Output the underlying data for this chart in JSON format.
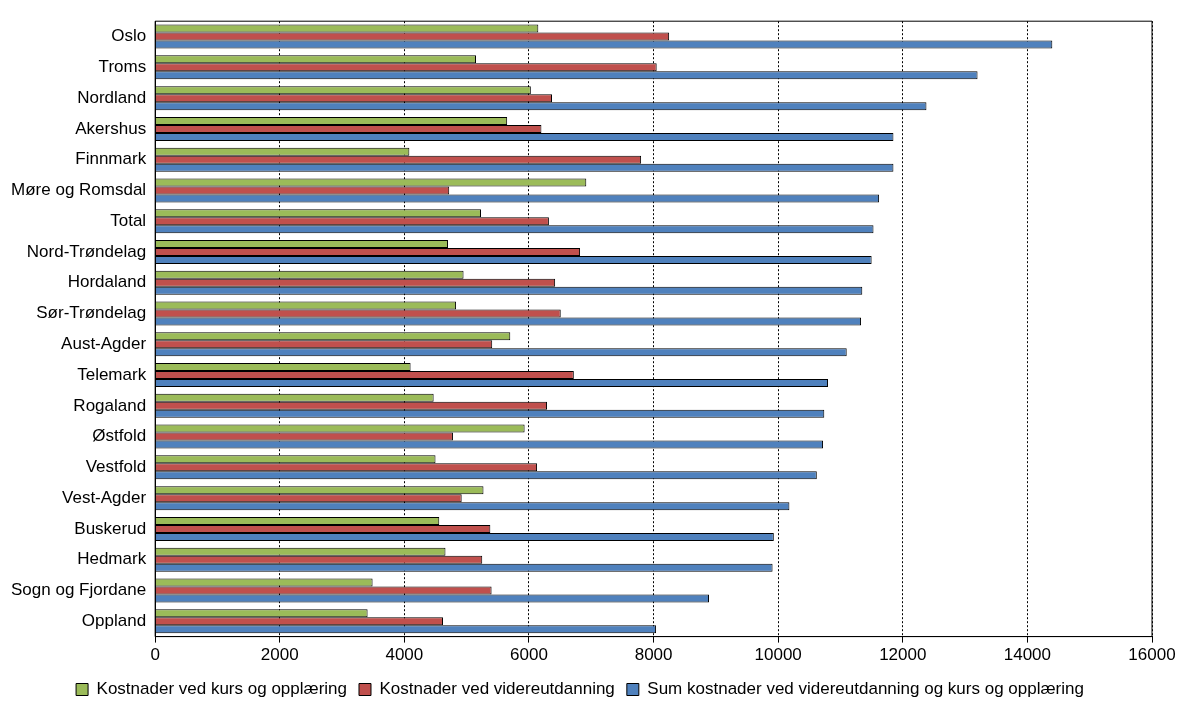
{
  "chart_data": {
    "type": "bar",
    "orientation": "horizontal",
    "categories": [
      "Oslo",
      "Troms",
      "Nordland",
      "Akershus",
      "Finnmark",
      "Møre og Romsdal",
      "Total",
      "Nord-Trøndelag",
      "Hordaland",
      "Sør-Trøndelag",
      "Aust-Agder",
      "Telemark",
      "Rogaland",
      "Østfold",
      "Vestfold",
      "Vest-Agder",
      "Buskerud",
      "Hedmark",
      "Sogn og Fjordane",
      "Oppland"
    ],
    "series": [
      {
        "name": "Kostnader ved kurs og opplæring",
        "color": "#9bbb59",
        "values": [
          6150,
          5150,
          6030,
          5650,
          4080,
          6920,
          5230,
          4700,
          4950,
          4830,
          5700,
          4100,
          4470,
          5930,
          4500,
          5270,
          4560,
          4660,
          3490,
          3410
        ]
      },
      {
        "name": "Kostnader ved videreutdanning",
        "color": "#c0504d",
        "values": [
          8250,
          8050,
          6370,
          6200,
          7800,
          4720,
          6320,
          6820,
          6420,
          6510,
          5410,
          6720,
          6290,
          4780,
          6130,
          4920,
          5380,
          5250,
          5400,
          4620
        ]
      },
      {
        "name": "Sum kostnader ved videreutdanning og kurs og opplæring",
        "color": "#4f81bd",
        "values": [
          14400,
          13200,
          12380,
          11850,
          11850,
          11620,
          11530,
          11500,
          11350,
          11330,
          11100,
          10800,
          10740,
          10720,
          10620,
          10180,
          9930,
          9910,
          8890,
          8040
        ]
      }
    ],
    "xlim": [
      0,
      16000
    ],
    "xticks": [
      0,
      2000,
      4000,
      6000,
      8000,
      10000,
      12000,
      14000,
      16000
    ],
    "grid": "x",
    "legend": "bottom"
  }
}
